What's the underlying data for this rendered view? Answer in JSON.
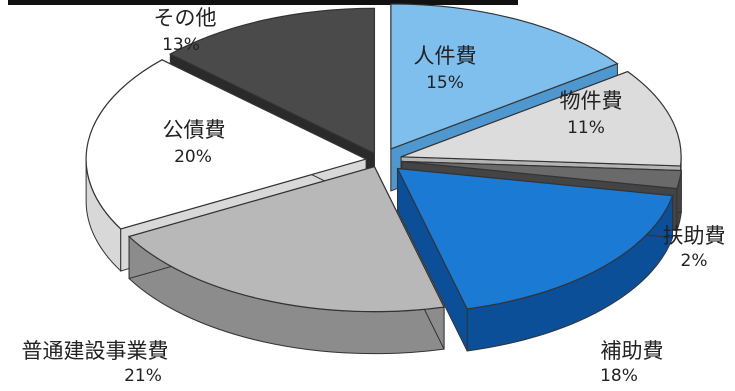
{
  "chart_data": {
    "type": "pie",
    "style": "exploded-3d",
    "slices": [
      {
        "label": "人件費",
        "value": 15,
        "value_label": "15%",
        "color": "#7fbfee",
        "side": "#4f98cf",
        "label_color": "#222222"
      },
      {
        "label": "物件費",
        "value": 11,
        "value_label": "11%",
        "color": "#dcdcdc",
        "side": "#b4b4b4",
        "label_color": "#222222"
      },
      {
        "label": "扶助費",
        "value": 2,
        "value_label": "2%",
        "color": "#6a6a6a",
        "side": "#444444",
        "label_color": "#222222"
      },
      {
        "label": "補助費",
        "value": 18,
        "value_label": "18%",
        "color": "#1a7ad4",
        "side": "#0c4f99",
        "label_color": "#222222"
      },
      {
        "label": "普通建設事業費",
        "value": 21,
        "value_label": "21%",
        "color": "#b8b8b8",
        "side": "#8c8c8c",
        "label_color": "#222222"
      },
      {
        "label": "公債費",
        "value": 20,
        "value_label": "20%",
        "color": "#ffffff",
        "side": "#d8d8d8",
        "label_color": "#222222"
      },
      {
        "label": "その他",
        "value": 13,
        "value_label": "13%",
        "color": "#4a4a4a",
        "side": "#2a2a2a",
        "label_color": "#222222"
      }
    ]
  }
}
